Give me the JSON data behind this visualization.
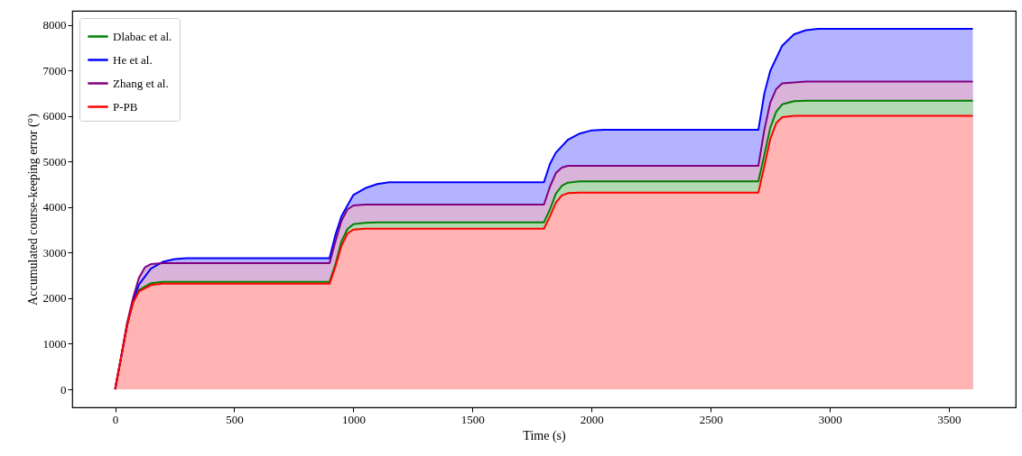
{
  "chart_data": {
    "type": "area",
    "xlabel": "Time (s)",
    "ylabel": "Accumulated course-keeping error (°)",
    "xlim": [
      -180,
      3780
    ],
    "ylim": [
      -396,
      8316
    ],
    "xticks": [
      0,
      500,
      1000,
      1500,
      2000,
      2500,
      3000,
      3500
    ],
    "yticks": [
      0,
      1000,
      2000,
      3000,
      4000,
      5000,
      6000,
      7000,
      8000
    ],
    "grid": false,
    "legend": "top left",
    "line_style": "solid",
    "marker": "none",
    "series": [
      {
        "name": "Dlabac et al.",
        "color": "#008000",
        "x": [
          0,
          25,
          50,
          75,
          100,
          150,
          200,
          900,
          925,
          950,
          975,
          1000,
          1050,
          1100,
          1800,
          1825,
          1850,
          1875,
          1900,
          1950,
          2700,
          2725,
          2750,
          2775,
          2800,
          2850,
          2900,
          3600
        ],
        "values": [
          0,
          700,
          1400,
          1900,
          2180,
          2330,
          2360,
          2360,
          2750,
          3250,
          3520,
          3630,
          3660,
          3670,
          3670,
          3950,
          4300,
          4470,
          4540,
          4570,
          4570,
          5150,
          5750,
          6100,
          6260,
          6330,
          6340,
          6340
        ]
      },
      {
        "name": "He et al.",
        "color": "#0000ff",
        "x": [
          0,
          25,
          50,
          75,
          100,
          150,
          200,
          250,
          300,
          900,
          925,
          950,
          1000,
          1050,
          1100,
          1150,
          1800,
          1825,
          1850,
          1900,
          1950,
          2000,
          2050,
          2700,
          2725,
          2750,
          2800,
          2850,
          2900,
          2950,
          3600
        ],
        "values": [
          0,
          700,
          1400,
          1950,
          2300,
          2650,
          2800,
          2860,
          2880,
          2880,
          3400,
          3800,
          4270,
          4420,
          4510,
          4550,
          4550,
          4950,
          5200,
          5480,
          5620,
          5690,
          5700,
          5700,
          6500,
          7000,
          7550,
          7800,
          7890,
          7920,
          7920
        ]
      },
      {
        "name": "Zhang et al.",
        "color": "#800080",
        "x": [
          0,
          25,
          50,
          75,
          100,
          125,
          150,
          200,
          900,
          925,
          950,
          975,
          1000,
          1050,
          1800,
          1825,
          1850,
          1875,
          1900,
          2700,
          2725,
          2750,
          2775,
          2800,
          2850,
          2900,
          3600
        ],
        "values": [
          0,
          700,
          1450,
          2000,
          2450,
          2680,
          2750,
          2770,
          2770,
          3250,
          3700,
          3950,
          4040,
          4060,
          4060,
          4450,
          4750,
          4870,
          4910,
          4910,
          5700,
          6300,
          6600,
          6720,
          6740,
          6760,
          6760
        ]
      },
      {
        "name": "P-PB",
        "color": "#ff0000",
        "x": [
          0,
          25,
          50,
          75,
          100,
          150,
          200,
          900,
          925,
          950,
          975,
          1000,
          1050,
          1800,
          1825,
          1850,
          1875,
          1900,
          1950,
          2700,
          2725,
          2750,
          2775,
          2800,
          2850,
          3600
        ],
        "values": [
          0,
          700,
          1400,
          1900,
          2150,
          2290,
          2320,
          2320,
          2700,
          3150,
          3420,
          3510,
          3530,
          3530,
          3800,
          4100,
          4260,
          4310,
          4320,
          4320,
          4900,
          5500,
          5850,
          5980,
          6010,
          6010
        ]
      }
    ]
  }
}
